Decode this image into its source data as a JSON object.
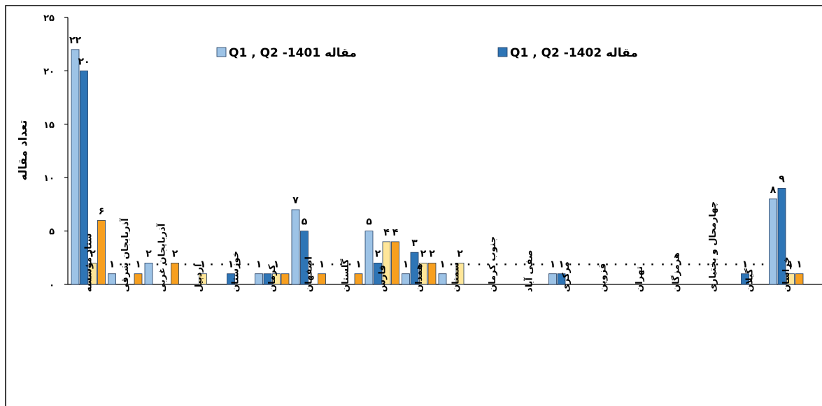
{
  "chart_data": {
    "type": "bar",
    "ylabel": "تعداد مقاله",
    "xlabel": "",
    "ylim": [
      0,
      25
    ],
    "yticks": [
      0,
      5,
      10,
      15,
      20,
      25
    ],
    "ytick_labels": [
      "۰",
      "۵",
      "۱۰",
      "۱۵",
      "۲۰",
      "۲۵"
    ],
    "legend_placement": "top",
    "grid": false,
    "categories": [
      "ستاد مؤسسه",
      "آذربایجان شرقی",
      "آذربایجان غربی",
      "اردبیل",
      "خوزستان",
      "کرمان",
      "اصفهان",
      "گلستان",
      "فارس",
      "همدان",
      "سمنان",
      "جنوب کرمان",
      "صفی آباد",
      "مرکزی",
      "قزوین",
      "تهران",
      "هرمزگان",
      "چهارمحال و بختیاری",
      "گیلان",
      "خراسان"
    ],
    "series": [
      {
        "name": "مقاله Q1 , Q2 -1401",
        "legend_label": "مقاله Q1 , Q2 -1401",
        "color": "#9dc3e6",
        "values": [
          22,
          1,
          2,
          0,
          0,
          1,
          7,
          0,
          5,
          1,
          1,
          0,
          0,
          1,
          0,
          0,
          0,
          0,
          0,
          8
        ],
        "labels": [
          "۲۲",
          "۱",
          "۲",
          "",
          "",
          "۱",
          "۷",
          "",
          "۵",
          "۱",
          "۱",
          "",
          "",
          "۱",
          "",
          "",
          "",
          "",
          "",
          "۸"
        ]
      },
      {
        "name": "مقاله Q1 , Q2 -1402",
        "legend_label": "مقاله Q1 , Q2 -1402",
        "color": "#2e75b6",
        "values": [
          20,
          0,
          0,
          0,
          1,
          1,
          5,
          0,
          2,
          3,
          0,
          0,
          0,
          1,
          0,
          0,
          0,
          0,
          1,
          9
        ],
        "labels": [
          "۲۰",
          "",
          "",
          "",
          "۱",
          "",
          "۵",
          "",
          "۲",
          "۳",
          "",
          "",
          "",
          "۱",
          "",
          "",
          "",
          "",
          "۱",
          "۹"
        ]
      },
      {
        "name": "",
        "color": "#ffe699",
        "values": [
          2,
          0,
          0,
          1,
          0,
          1,
          0,
          0,
          4,
          2,
          2,
          0,
          0,
          0,
          0,
          0,
          0,
          0,
          0,
          1
        ],
        "labels": [
          "۲",
          "",
          "",
          "۱",
          "",
          "۱",
          "",
          "",
          "۴",
          "۲",
          "۲",
          "",
          "",
          "",
          "",
          "",
          "",
          "",
          "",
          "۱"
        ]
      },
      {
        "name": "",
        "color": "#f79f1f",
        "values": [
          6,
          1,
          2,
          0,
          0,
          1,
          1,
          1,
          4,
          2,
          0,
          0,
          0,
          0,
          0,
          0,
          0,
          0,
          0,
          1
        ],
        "labels": [
          "۶",
          "۱",
          "۲",
          "",
          "",
          "",
          "۱",
          "۱",
          "۴",
          "۲",
          "",
          "",
          "",
          "",
          "",
          "",
          "",
          "",
          "",
          "۱"
        ]
      }
    ]
  },
  "legend": {
    "left_text": "مقاله Q1 , Q2 -1401",
    "right_text": "مقاله Q1 , Q2 -1402"
  }
}
